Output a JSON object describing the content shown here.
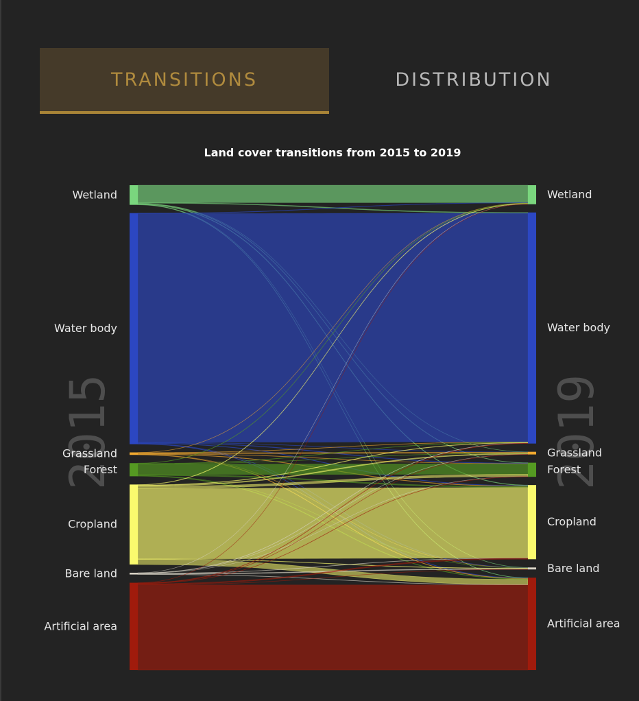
{
  "tabs": [
    {
      "label": "TRANSITIONS",
      "active": true
    },
    {
      "label": "DISTRIBUTION",
      "active": false
    }
  ],
  "chart_data": {
    "type": "sankey",
    "title": "Land cover transitions from 2015 to 2019",
    "source_year": "2015",
    "target_year": "2019",
    "nodes": [
      {
        "name": "Wetland",
        "color": "#7ad67e"
      },
      {
        "name": "Water body",
        "color": "#2c47c2"
      },
      {
        "name": "Grassland",
        "color": "#f0a830"
      },
      {
        "name": "Forest",
        "color": "#559a22"
      },
      {
        "name": "Cropland",
        "color": "#fafa6e"
      },
      {
        "name": "Bare land",
        "color": "#dcd6c8"
      },
      {
        "name": "Artificial area",
        "color": "#a01b0c"
      }
    ],
    "flows": [
      {
        "from": "Wetland",
        "to": "Wetland",
        "value": 2.0
      },
      {
        "from": "Wetland",
        "to": "Water body",
        "value": 0.08
      },
      {
        "from": "Wetland",
        "to": "Grassland",
        "value": 0.02
      },
      {
        "from": "Wetland",
        "to": "Forest",
        "value": 0.04
      },
      {
        "from": "Wetland",
        "to": "Cropland",
        "value": 0.06
      },
      {
        "from": "Wetland",
        "to": "Bare land",
        "value": 0.02
      },
      {
        "from": "Wetland",
        "to": "Artificial area",
        "value": 0.04
      },
      {
        "from": "Water body",
        "to": "Wetland",
        "value": 0.05
      },
      {
        "from": "Water body",
        "to": "Water body",
        "value": 26.3
      },
      {
        "from": "Water body",
        "to": "Grassland",
        "value": 0.03
      },
      {
        "from": "Water body",
        "to": "Forest",
        "value": 0.06
      },
      {
        "from": "Water body",
        "to": "Cropland",
        "value": 0.05
      },
      {
        "from": "Water body",
        "to": "Bare land",
        "value": 0.03
      },
      {
        "from": "Water body",
        "to": "Artificial area",
        "value": 0.05
      },
      {
        "from": "Grassland",
        "to": "Wetland",
        "value": 0.02
      },
      {
        "from": "Grassland",
        "to": "Water body",
        "value": 0.03
      },
      {
        "from": "Grassland",
        "to": "Grassland",
        "value": 0.1
      },
      {
        "from": "Grassland",
        "to": "Forest",
        "value": 0.03
      },
      {
        "from": "Grassland",
        "to": "Cropland",
        "value": 0.05
      },
      {
        "from": "Grassland",
        "to": "Bare land",
        "value": 0.01
      },
      {
        "from": "Grassland",
        "to": "Artificial area",
        "value": 0.05
      },
      {
        "from": "Forest",
        "to": "Wetland",
        "value": 0.04
      },
      {
        "from": "Forest",
        "to": "Water body",
        "value": 0.04
      },
      {
        "from": "Forest",
        "to": "Grassland",
        "value": 0.03
      },
      {
        "from": "Forest",
        "to": "Forest",
        "value": 1.2
      },
      {
        "from": "Forest",
        "to": "Cropland",
        "value": 0.12
      },
      {
        "from": "Forest",
        "to": "Bare land",
        "value": 0.02
      },
      {
        "from": "Forest",
        "to": "Artificial area",
        "value": 0.06
      },
      {
        "from": "Cropland",
        "to": "Wetland",
        "value": 0.05
      },
      {
        "from": "Cropland",
        "to": "Water body",
        "value": 0.05
      },
      {
        "from": "Cropland",
        "to": "Grassland",
        "value": 0.1
      },
      {
        "from": "Cropland",
        "to": "Forest",
        "value": 0.25
      },
      {
        "from": "Cropland",
        "to": "Cropland",
        "value": 8.1
      },
      {
        "from": "Cropland",
        "to": "Bare land",
        "value": 0.05
      },
      {
        "from": "Cropland",
        "to": "Artificial area",
        "value": 0.6
      },
      {
        "from": "Bare land",
        "to": "Wetland",
        "value": 0.01
      },
      {
        "from": "Bare land",
        "to": "Water body",
        "value": 0.03
      },
      {
        "from": "Bare land",
        "to": "Grassland",
        "value": 0.01
      },
      {
        "from": "Bare land",
        "to": "Forest",
        "value": 0.01
      },
      {
        "from": "Bare land",
        "to": "Cropland",
        "value": 0.03
      },
      {
        "from": "Bare land",
        "to": "Bare land",
        "value": 0.08
      },
      {
        "from": "Bare land",
        "to": "Artificial area",
        "value": 0.03
      },
      {
        "from": "Artificial area",
        "to": "Wetland",
        "value": 0.02
      },
      {
        "from": "Artificial area",
        "to": "Water body",
        "value": 0.04
      },
      {
        "from": "Artificial area",
        "to": "Grassland",
        "value": 0.02
      },
      {
        "from": "Artificial area",
        "to": "Forest",
        "value": 0.03
      },
      {
        "from": "Artificial area",
        "to": "Cropland",
        "value": 0.12
      },
      {
        "from": "Artificial area",
        "to": "Bare land",
        "value": 0.02
      },
      {
        "from": "Artificial area",
        "to": "Artificial area",
        "value": 9.8
      }
    ]
  }
}
